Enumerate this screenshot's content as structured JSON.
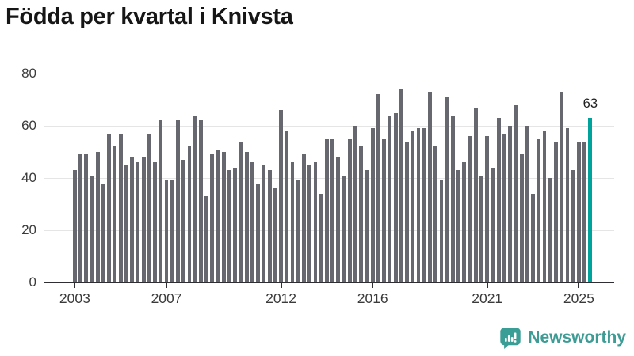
{
  "chart_data": {
    "type": "bar",
    "title": "Födda per kvartal i Knivsta",
    "x_start": "2003 Q1",
    "x_end": "2025 Q3",
    "frequency": "quarterly",
    "values": [
      43,
      49,
      49,
      41,
      50,
      38,
      57,
      52,
      57,
      45,
      48,
      46,
      48,
      57,
      46,
      62,
      39,
      39,
      62,
      47,
      52,
      64,
      62,
      33,
      49,
      51,
      50,
      43,
      44,
      54,
      50,
      46,
      38,
      45,
      43,
      36,
      66,
      58,
      46,
      39,
      49,
      45,
      46,
      34,
      55,
      55,
      48,
      41,
      55,
      60,
      52,
      43,
      59,
      72,
      55,
      64,
      65,
      74,
      54,
      58,
      59,
      59,
      73,
      52,
      39,
      71,
      64,
      43,
      46,
      56,
      67,
      41,
      56,
      44,
      63,
      57,
      60,
      68,
      49,
      60,
      34,
      55,
      58,
      40,
      54,
      73,
      59,
      43,
      54,
      54,
      63
    ],
    "x_tick_labels": [
      "2003",
      "2007",
      "2012",
      "2016",
      "2021",
      "2025"
    ],
    "x_tick_indices": [
      0,
      16,
      36,
      52,
      72,
      88
    ],
    "y_ticks": [
      0,
      20,
      40,
      60,
      80
    ],
    "ylim": [
      0,
      80
    ],
    "grid": "horizontal",
    "legend": "none",
    "bar_color": "#67676f",
    "highlight": {
      "index": 90,
      "value": 63,
      "label": "63",
      "color": "#00a39b"
    }
  },
  "logo": {
    "text": "Newsworthy",
    "color": "#3e9c95",
    "icon": "newsworthy-bar-chart-bubble-icon",
    "icon_color": "#3a9e96"
  }
}
